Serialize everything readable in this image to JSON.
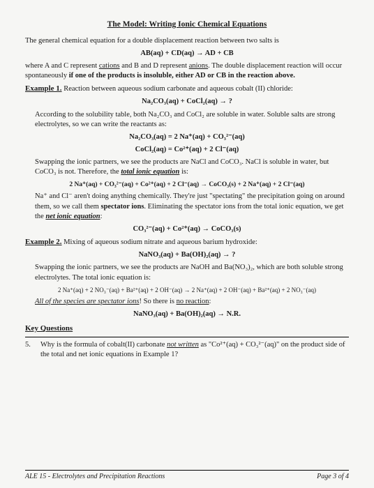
{
  "title": "The Model:  Writing Ionic Chemical Equations",
  "intro": "The general chemical equation for a double displacement reaction between two salts is",
  "eq_general": "AB(aq)  + CD(aq)  →  AD  +  CB",
  "intro2a": "where A and C represent ",
  "intro2_cations": "cations",
  "intro2b": " and B and D represent ",
  "intro2_anions": "anions",
  "intro2c": ".  The double displacement reaction will occur spontaneously ",
  "intro2_bold": "if one of the products is insoluble, either AD or CB in the reaction above.",
  "ex1_label": "Example 1.",
  "ex1_text": " Reaction between aqueous sodium carbonate and aqueous cobalt (II) chloride:",
  "ex1_eq1": "Na₂CO₃(aq)  +  CoCl₂(aq)  →  ?",
  "ex1_p1": "According to the solubility table, both Na₂CO₃ and CoCl₂ are soluble in water.  Soluble salts are strong electrolytes, so we can write the reactants as:",
  "ex1_eq2": "Na₂CO₃(aq)  =  2 Na⁺(aq)  +  CO₃²⁻(aq)",
  "ex1_eq3": "CoCl₂(aq)  =  Co²⁺(aq)  +  2 Cl⁻(aq)",
  "ex1_p2a": "Swapping the ionic partners, we see the products are NaCl and CoCO₃.  NaCl is soluble in water, but CoCO₃ is not.  Therefore, the ",
  "ex1_p2_tie": "total ionic equation",
  "ex1_p2b": " is:",
  "ex1_eq4": "2 Na⁺(aq)  +  CO₃²⁻(aq)  +  Co²⁺(aq)  +  2 Cl⁻(aq)  →  CoCO₃(s)  +  2 Na⁺(aq)  +  2 Cl⁻(aq)",
  "ex1_p3a": "Na⁺ and Cl⁻ aren't doing anything chemically.  They're just \"spectating\" the precipitation going on around them, so we call them ",
  "ex1_p3_spec": "spectator ions",
  "ex1_p3b": ".  Eliminating the spectator ions from the total ionic equation, we get the ",
  "ex1_p3_nie": "net ionic equation",
  "ex1_p3c": ":",
  "ex1_eq5": "CO₃²⁻(aq)  +  Co²⁺(aq)  →  CoCO₃(s)",
  "ex2_label": "Example 2.",
  "ex2_text": "  Mixing of aqueous sodium nitrate and aqueous barium hydroxide:",
  "ex2_eq1": "NaNO₃(aq)  +  Ba(OH)₂(aq)  →  ?",
  "ex2_p1": "Swapping the ionic partners, we see the products are NaOH and Ba(NO₃)₂, which are both soluble strong electrolytes.  The total ionic equation is:",
  "ex2_eq2": "2 Na⁺(aq)  +  2 NO₃⁻(aq)  +  Ba²⁺(aq)  +  2 OH⁻(aq)  →  2 Na⁺(aq)  +  2 OH⁻(aq)  +  Ba²⁺(aq)  +  2 NO₃⁻(aq)",
  "ex2_p2a": "All of the species are spectator ions",
  "ex2_p2b": "!  So there is ",
  "ex2_p2c": "no reaction",
  "ex2_p2d": ":",
  "ex2_eq3": "NaNO₃(aq)  +  Ba(OH)₂(aq)  →  N.R.",
  "kq_label": "Key Questions",
  "q5_num": "5.",
  "q5a": "Why is the formula of cobalt(II) carbonate ",
  "q5_nw": "not written",
  "q5b": " as \"Co²⁺(aq)  +  CO₃²⁻(aq)\" on the product side of the total and net ionic equations in Example 1?",
  "footer_left": "ALE 15 - Electrolytes and Precipitation Reactions",
  "footer_right": "Page 3 of 4"
}
